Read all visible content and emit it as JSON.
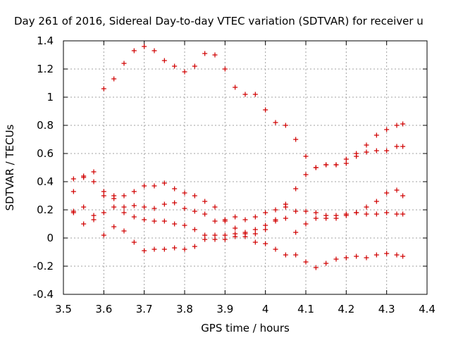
{
  "colors": {
    "series": "#d00000",
    "grid": "#a0a0a0",
    "axis": "#000000"
  },
  "chart_data": {
    "type": "scatter",
    "title": "Day 261 of 2016, Sidereal Day-to-day VTEC variation (SDTVAR) for receiver u",
    "xlabel": "GPS time / hours",
    "ylabel": "SDTVAR / TECUs",
    "xlim": [
      3.5,
      4.4
    ],
    "ylim": [
      -0.4,
      1.4
    ],
    "x_ticks": [
      "3.5",
      "3.6",
      "3.7",
      "3.8",
      "3.9",
      "4",
      "4.1",
      "4.2",
      "4.3",
      "4.4"
    ],
    "y_ticks": [
      "-0.4",
      "-0.2",
      "0",
      "0.2",
      "0.4",
      "0.6",
      "0.8",
      "1",
      "1.2",
      "1.4"
    ],
    "grid": true,
    "marker": "plus",
    "legend": "none",
    "series": [
      {
        "x": [
          3.6,
          3.625,
          3.65,
          3.675,
          3.7,
          3.725,
          3.75,
          3.775,
          3.8,
          3.825,
          3.85,
          3.875,
          3.9,
          3.925,
          3.95,
          3.975,
          4.0,
          4.025,
          4.05,
          4.075,
          4.1,
          4.125,
          4.15,
          4.175,
          4.2,
          4.225,
          4.25,
          4.275,
          4.3,
          4.325,
          4.34
        ],
        "y": [
          1.06,
          1.13,
          1.24,
          1.33,
          1.36,
          1.33,
          1.26,
          1.22,
          1.18,
          1.22,
          1.31,
          1.3,
          1.2,
          1.07,
          1.02,
          1.02,
          0.91,
          0.82,
          0.8,
          0.7,
          0.58,
          0.5,
          0.52,
          0.52,
          0.53,
          0.58,
          0.66,
          0.73,
          0.77,
          0.8,
          0.81
        ]
      },
      {
        "x": [
          3.525,
          3.55,
          3.575,
          3.6,
          3.625,
          3.65,
          3.675,
          3.7,
          3.725,
          3.75,
          3.775,
          3.8,
          3.825,
          3.85,
          3.875,
          3.9,
          3.925,
          3.95,
          3.975,
          4.0,
          4.025,
          4.05,
          4.075,
          4.1,
          4.125,
          4.15,
          4.175,
          4.2,
          4.225,
          4.25,
          4.275,
          4.3,
          4.325,
          4.34
        ],
        "y": [
          0.42,
          0.44,
          0.47,
          0.33,
          0.3,
          0.3,
          0.33,
          0.37,
          0.37,
          0.39,
          0.35,
          0.32,
          0.3,
          0.26,
          0.22,
          0.12,
          0.07,
          0.04,
          0.03,
          0.06,
          0.13,
          0.22,
          0.35,
          0.45,
          0.5,
          0.52,
          0.52,
          0.56,
          0.6,
          0.61,
          0.62,
          0.62,
          0.65,
          0.65
        ]
      },
      {
        "x": [
          3.525,
          3.55,
          3.575,
          3.6,
          3.625,
          3.65,
          3.675,
          3.7,
          3.725,
          3.75,
          3.775,
          3.8,
          3.825,
          3.85,
          3.875,
          3.9,
          3.925,
          3.95,
          3.975,
          4.0,
          4.025,
          4.05,
          4.075,
          4.1,
          4.125,
          4.15,
          4.175,
          4.2,
          4.225,
          4.25,
          4.275,
          4.3,
          4.325,
          4.34
        ],
        "y": [
          0.33,
          0.43,
          0.4,
          0.3,
          0.28,
          0.22,
          0.23,
          0.22,
          0.21,
          0.24,
          0.25,
          0.21,
          0.19,
          0.17,
          0.12,
          0.13,
          0.15,
          0.13,
          0.15,
          0.18,
          0.2,
          0.24,
          0.19,
          0.19,
          0.18,
          0.16,
          0.16,
          0.17,
          0.18,
          0.17,
          0.17,
          0.18,
          0.17,
          0.17
        ]
      },
      {
        "x": [
          3.525,
          3.55,
          3.575,
          3.6,
          3.625,
          3.65,
          3.675,
          3.7,
          3.725,
          3.75,
          3.775,
          3.8,
          3.825,
          3.85,
          3.875,
          3.9,
          3.925,
          3.95,
          3.975,
          4.0,
          4.025,
          4.05,
          4.075,
          4.1,
          4.125,
          4.15,
          4.175,
          4.2,
          4.225,
          4.25,
          4.275,
          4.3,
          4.325,
          4.34
        ],
        "y": [
          0.19,
          0.22,
          0.16,
          0.18,
          0.22,
          0.18,
          0.15,
          0.13,
          0.12,
          0.12,
          0.1,
          0.09,
          0.06,
          0.02,
          -0.01,
          -0.01,
          0.01,
          0.03,
          0.06,
          0.09,
          0.12,
          0.14,
          0.04,
          0.1,
          0.14,
          0.14,
          0.14,
          0.16,
          0.18,
          0.22,
          0.26,
          0.32,
          0.34,
          0.3
        ]
      },
      {
        "x": [
          3.525,
          3.55,
          3.575,
          3.6,
          3.625,
          3.65,
          3.675,
          3.7,
          3.725,
          3.75,
          3.775,
          3.8,
          3.825,
          3.85,
          3.875,
          3.9,
          3.925,
          3.95,
          3.975,
          4.0,
          4.025,
          4.05,
          4.075,
          4.1,
          4.125,
          4.15,
          4.175,
          4.2,
          4.225,
          4.25,
          4.275,
          4.3,
          4.325,
          4.34
        ],
        "y": [
          0.18,
          0.1,
          0.13,
          0.02,
          0.08,
          0.05,
          -0.03,
          -0.09,
          -0.08,
          -0.08,
          -0.07,
          -0.08,
          -0.06,
          -0.01,
          0.02,
          0.02,
          0.03,
          0.01,
          -0.03,
          -0.04,
          -0.08,
          -0.12,
          -0.12,
          -0.17,
          -0.21,
          -0.18,
          -0.15,
          -0.14,
          -0.13,
          -0.14,
          -0.12,
          -0.11,
          -0.12,
          -0.13
        ]
      }
    ]
  }
}
